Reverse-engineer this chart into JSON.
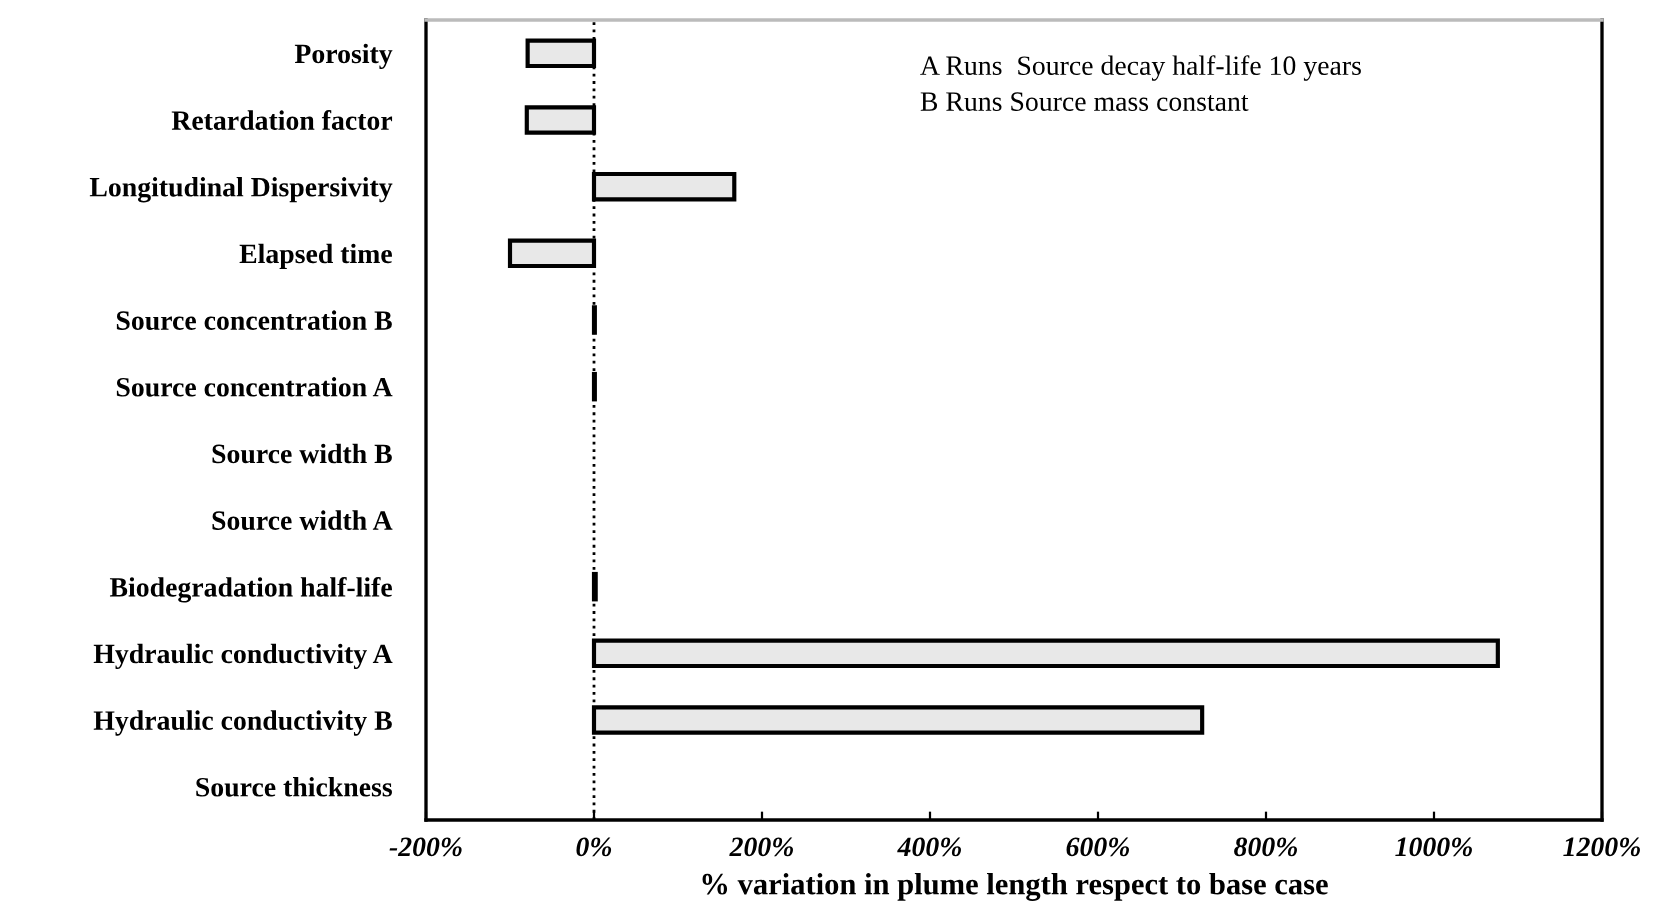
{
  "chart_data": {
    "type": "bar",
    "orientation": "horizontal",
    "categories": [
      "Porosity",
      "Retardation factor",
      "Longitudinal Dispersivity",
      "Elapsed time",
      "Source concentration B",
      "Source concentration A",
      "Source width B",
      "Source width A",
      "Biodegradation half-life",
      "Hydraulic conductivity A",
      "Hydraulic conductivity B",
      "Source thickness"
    ],
    "values": [
      -79,
      -80,
      167,
      -100,
      1,
      1,
      0,
      0,
      2,
      1076,
      724,
      0
    ],
    "color": "#e8e8e8",
    "xlabel": "% variation in plume length respect to base case",
    "xlim": [
      -200,
      1200
    ],
    "xticks": [
      {
        "value": -200,
        "label": "-200%"
      },
      {
        "value": 0,
        "label": "0%"
      },
      {
        "value": 200,
        "label": "200%"
      },
      {
        "value": 400,
        "label": "400%"
      },
      {
        "value": 600,
        "label": "600%"
      },
      {
        "value": 800,
        "label": "800%"
      },
      {
        "value": 1000,
        "label": "1000%"
      },
      {
        "value": 1200,
        "label": "1200%"
      }
    ],
    "ref_lines": [
      {
        "axis": "x",
        "value": 0,
        "label": null,
        "color": "#000000",
        "line_style": "dotted"
      }
    ],
    "annotations": [
      "A Runs  Source decay half-life 10 years",
      "B Runs Source mass constant"
    ],
    "grid": false,
    "legend": false
  }
}
